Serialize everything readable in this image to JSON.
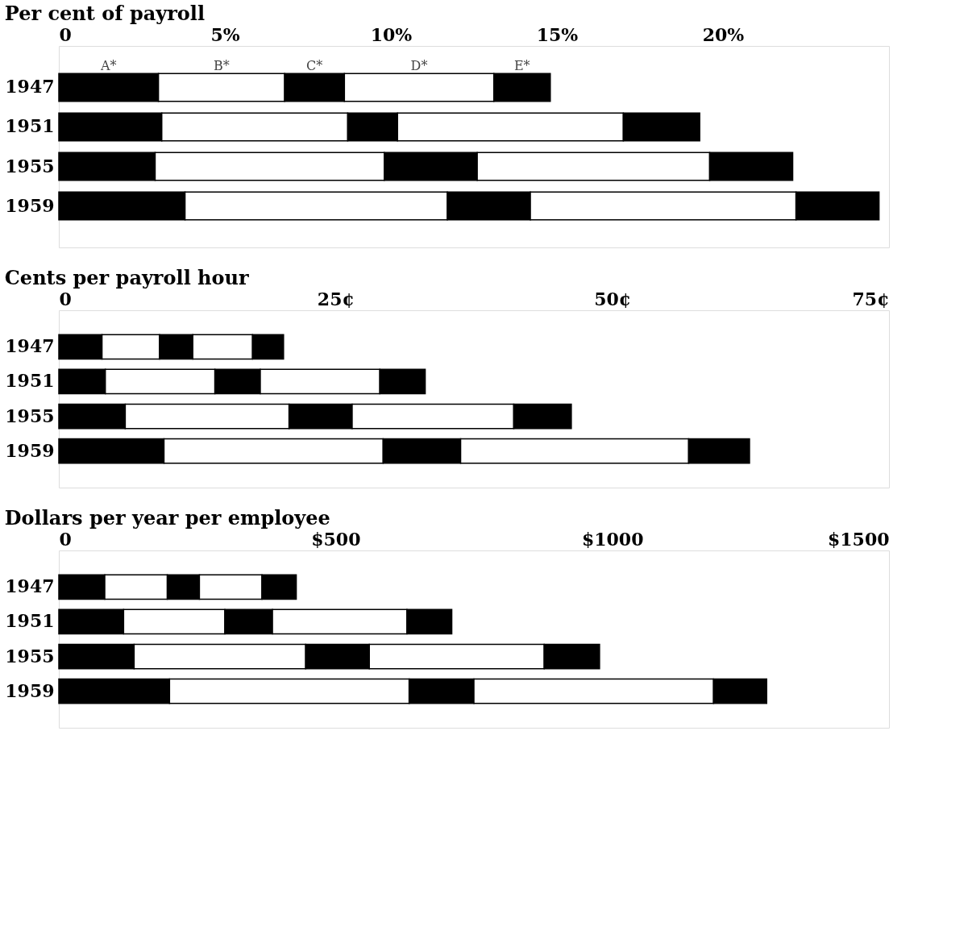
{
  "chart_data": [
    {
      "type": "bar",
      "orientation": "horizontal",
      "stacked": true,
      "title": "Per cent of payroll",
      "categories": [
        "1947",
        "1951",
        "1955",
        "1959"
      ],
      "series": [
        {
          "name": "A*",
          "color": "#000000",
          "values": [
            3.0,
            3.1,
            2.9,
            3.8
          ]
        },
        {
          "name": "B*",
          "color": "#ffffff",
          "values": [
            3.8,
            5.6,
            6.9,
            7.9
          ]
        },
        {
          "name": "C*",
          "color": "#000000",
          "values": [
            1.8,
            1.5,
            2.8,
            2.5
          ]
        },
        {
          "name": "D*",
          "color": "#ffffff",
          "values": [
            4.5,
            6.8,
            7.0,
            8.0
          ]
        },
        {
          "name": "E*",
          "color": "#000000",
          "values": [
            1.7,
            2.3,
            2.5,
            2.5
          ]
        }
      ],
      "xlim": [
        0,
        25
      ],
      "xticks": [
        0,
        {
          "value": 5,
          "label": "5%"
        },
        {
          "value": 10,
          "label": "10%"
        },
        {
          "value": 15,
          "label": "15%"
        },
        {
          "value": 20,
          "label": "20%"
        }
      ],
      "grid": false,
      "legend": false
    },
    {
      "type": "bar",
      "orientation": "horizontal",
      "stacked": true,
      "title": "Cents per payroll hour",
      "categories": [
        "1947",
        "1951",
        "1955",
        "1959"
      ],
      "series": [
        {
          "color": "#000000",
          "values": [
            3.9,
            4.2,
            6.0,
            9.5
          ]
        },
        {
          "color": "#ffffff",
          "values": [
            5.2,
            9.9,
            14.8,
            19.8
          ]
        },
        {
          "color": "#000000",
          "values": [
            3.0,
            4.1,
            5.7,
            7.0
          ]
        },
        {
          "color": "#ffffff",
          "values": [
            5.4,
            10.8,
            14.6,
            20.6
          ]
        },
        {
          "color": "#000000",
          "values": [
            2.8,
            4.1,
            5.2,
            5.5
          ]
        }
      ],
      "xlim": [
        0,
        75
      ],
      "xticks": [
        0,
        {
          "value": 25,
          "label": "25¢"
        },
        {
          "value": 50,
          "label": "50¢"
        },
        {
          "value": 75,
          "label": "75¢"
        }
      ],
      "grid": false,
      "legend": false
    },
    {
      "type": "bar",
      "orientation": "horizontal",
      "stacked": true,
      "title": "Dollars per year per employee",
      "categories": [
        "1947",
        "1951",
        "1955",
        "1959"
      ],
      "series": [
        {
          "color": "#000000",
          "values": [
            83,
            117,
            136,
            200
          ]
        },
        {
          "color": "#ffffff",
          "values": [
            113,
            183,
            310,
            433
          ]
        },
        {
          "color": "#000000",
          "values": [
            58,
            86,
            115,
            117
          ]
        },
        {
          "color": "#ffffff",
          "values": [
            113,
            243,
            316,
            433
          ]
        },
        {
          "color": "#000000",
          "values": [
            62,
            81,
            100,
            96
          ]
        }
      ],
      "xlim": [
        0,
        1500
      ],
      "xticks": [
        0,
        {
          "value": 500,
          "label": "$500"
        },
        {
          "value": 1000,
          "label": "$1000"
        },
        {
          "value": 1500,
          "label": "$1500"
        }
      ],
      "grid": false,
      "legend": false
    }
  ]
}
